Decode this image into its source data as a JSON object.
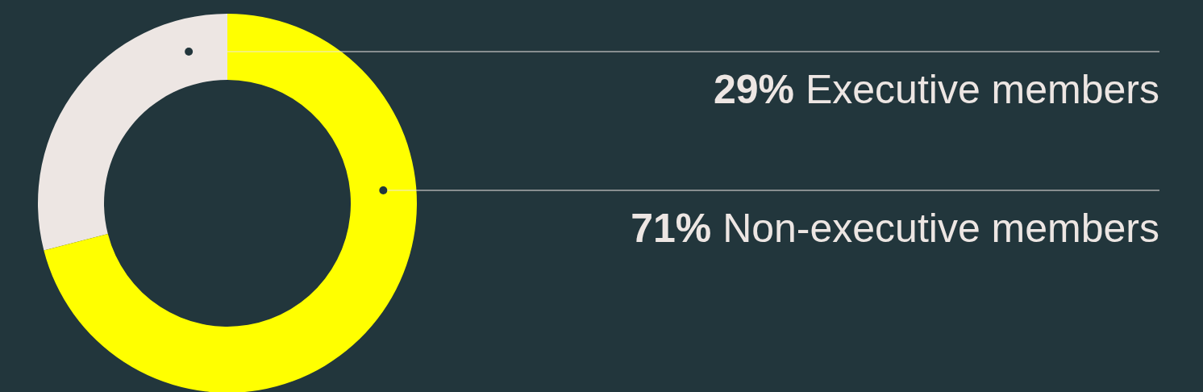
{
  "chart_data": {
    "type": "donut",
    "categories": [
      "Executive members",
      "Non-executive members"
    ],
    "values": [
      29,
      71
    ],
    "colors": [
      "#ede6e3",
      "#ffff00"
    ],
    "value_labels": [
      "29%",
      "71%"
    ]
  }
}
